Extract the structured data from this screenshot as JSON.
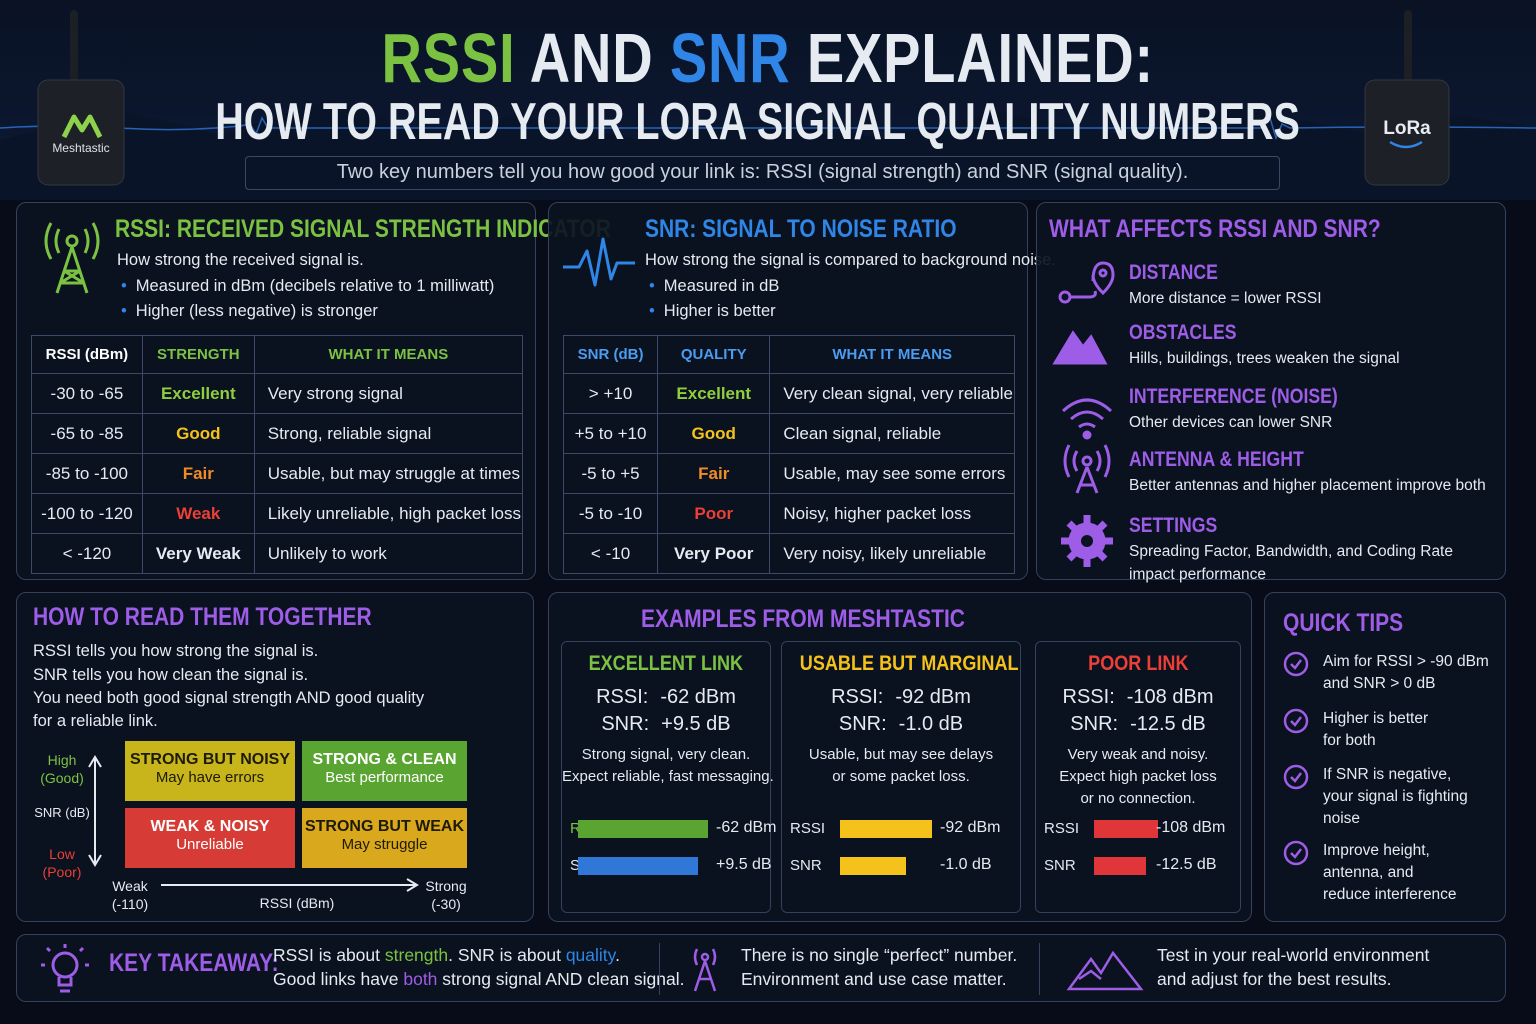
{
  "header": {
    "title_rssi": "RSSI",
    "title_and": "AND",
    "title_snr": "SNR",
    "title_explained": "EXPLAINED:",
    "subtitle": "HOW TO READ YOUR LORA SIGNAL QUALITY NUMBERS",
    "intro": "Two key numbers tell you how good your link is: RSSI (signal strength) and SNR (signal quality).",
    "device_left": "Meshtastic",
    "device_right": "LoRa"
  },
  "rssi": {
    "title": "RSSI: RECEIVED SIGNAL STRENGTH INDICATOR",
    "description": "How strong the received signal is.",
    "bullets": [
      "Measured in dBm (decibels relative to 1 milliwatt)",
      "Higher (less negative) is stronger"
    ],
    "table": {
      "header": [
        "RSSI (dBm)",
        "STRENGTH",
        "WHAT IT MEANS"
      ],
      "rows": [
        [
          "-30 to -65",
          "Excellent",
          "Very strong signal"
        ],
        [
          "-65 to -85",
          "Good",
          "Strong, reliable signal"
        ],
        [
          "-85 to -100",
          "Fair",
          "Usable, but may struggle at times"
        ],
        [
          "-100 to -120",
          "Weak",
          "Likely unreliable, high packet loss"
        ],
        [
          "< -120",
          "Very Weak",
          "Unlikely to work"
        ]
      ]
    }
  },
  "snr": {
    "title": "SNR: SIGNAL TO NOISE RATIO",
    "description": "How strong the signal is compared to background noise.",
    "bullets": [
      "Measured in dB",
      "Higher is better"
    ],
    "table": {
      "header": [
        "SNR (dB)",
        "QUALITY",
        "WHAT IT MEANS"
      ],
      "rows": [
        [
          "> +10",
          "Excellent",
          "Very clean signal, very reliable"
        ],
        [
          "+5 to +10",
          "Good",
          "Clean signal, reliable"
        ],
        [
          "-5 to +5",
          "Fair",
          "Usable, may see some errors"
        ],
        [
          "-5 to -10",
          "Poor",
          "Noisy, higher packet loss"
        ],
        [
          "< -10",
          "Very Poor",
          "Very noisy, likely unreliable"
        ]
      ]
    }
  },
  "affects": {
    "title": "WHAT AFFECTS RSSI AND SNR?",
    "items": [
      {
        "title": "DISTANCE",
        "text": [
          "More distance = lower RSSI"
        ]
      },
      {
        "title": "OBSTACLES",
        "text": [
          "Hills, buildings, trees weaken the signal"
        ]
      },
      {
        "title": "INTERFERENCE (NOISE)",
        "text": [
          "Other devices can lower SNR"
        ]
      },
      {
        "title": "ANTENNA & HEIGHT",
        "text": [
          "Better antennas and higher placement improve both"
        ]
      },
      {
        "title": "SETTINGS",
        "text": [
          "Spreading Factor, Bandwidth, and Coding Rate",
          "impact performance"
        ]
      }
    ]
  },
  "together": {
    "title": "HOW TO READ THEM TOGETHER",
    "lines": [
      "RSSI tells you how strong the signal is.",
      "SNR tells you how clean the signal is."
    ],
    "paragraph": [
      "You need both good signal strength AND good quality",
      "for a reliable link."
    ],
    "chart": {
      "y_high": [
        "High",
        "(Good)"
      ],
      "y_label": "SNR (dB)",
      "y_low": [
        "Low",
        "(Poor)"
      ],
      "x_left": [
        "Weak",
        "(-110)"
      ],
      "x_label": "RSSI (dBm)",
      "x_right": [
        "Strong",
        "(-30)"
      ],
      "quadrants": [
        {
          "title": "STRONG BUT NOISY",
          "text": "May have errors"
        },
        {
          "title": "STRONG & CLEAN",
          "text": "Best performance"
        },
        {
          "title": "WEAK & NOISY",
          "text": "Unreliable"
        },
        {
          "title": "STRONG BUT WEAK",
          "text": "May struggle"
        }
      ]
    }
  },
  "examples": {
    "title": "EXAMPLES FROM MESHTASTIC",
    "cards": [
      {
        "title": "EXCELLENT LINK",
        "rssi_label": "RSSI:",
        "rssi": "-62 dBm",
        "snr_label": "SNR:",
        "snr": "+9.5 dB",
        "description": [
          "Strong signal, very clean.",
          "Expect reliable, fast messaging."
        ],
        "bar_rssi_label": "RSSI",
        "bar_snr_label": "SNR"
      },
      {
        "title": "USABLE BUT MARGINAL",
        "rssi_label": "RSSI:",
        "rssi": "-92 dBm",
        "snr_label": "SNR:",
        "snr": "-1.0 dB",
        "description": [
          "Usable, but may see delays",
          "or some packet loss."
        ],
        "bar_rssi_label": "RSSI",
        "bar_snr_label": "SNR"
      },
      {
        "title": "POOR LINK",
        "rssi_label": "RSSI:",
        "rssi": "-108 dBm",
        "snr_label": "SNR:",
        "snr": "-12.5 dB",
        "description": [
          "Very weak and noisy.",
          "Expect high packet loss",
          "or no connection."
        ],
        "bar_rssi_label": "RSSI",
        "bar_snr_label": "SNR"
      }
    ]
  },
  "tips": {
    "title": "QUICK TIPS",
    "items": [
      [
        "Aim for RSSI > -90 dBm",
        "and SNR > 0 dB"
      ],
      [
        "Higher is better",
        "for both"
      ],
      [
        "If SNR is negative,",
        "your signal is fighting",
        "noise"
      ],
      [
        "Improve height,",
        "antenna, and",
        "reduce interference"
      ]
    ]
  },
  "takeaway": {
    "label": "KEY TAKEAWAY:",
    "line1": [
      "RSSI is about ",
      "strength",
      ". SNR is about ",
      "quality",
      "."
    ],
    "line2": [
      "Good links have ",
      "both",
      " strong signal AND clean signal."
    ],
    "note2": [
      "There is no single “perfect” number.",
      "Environment and use case matter."
    ],
    "note3": [
      "Test in your real-world environment",
      "and adjust for the best results."
    ]
  }
}
